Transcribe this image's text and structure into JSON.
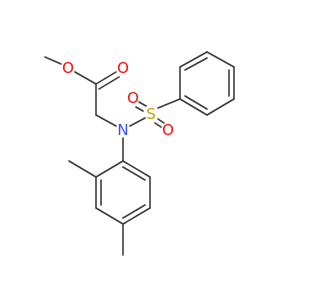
{
  "atoms": [
    {
      "label": "O"
    },
    {
      "label": "O"
    },
    {
      "label": "N"
    },
    {
      "label": "S"
    },
    {
      "label": "O"
    },
    {
      "label": "O"
    }
  ]
}
